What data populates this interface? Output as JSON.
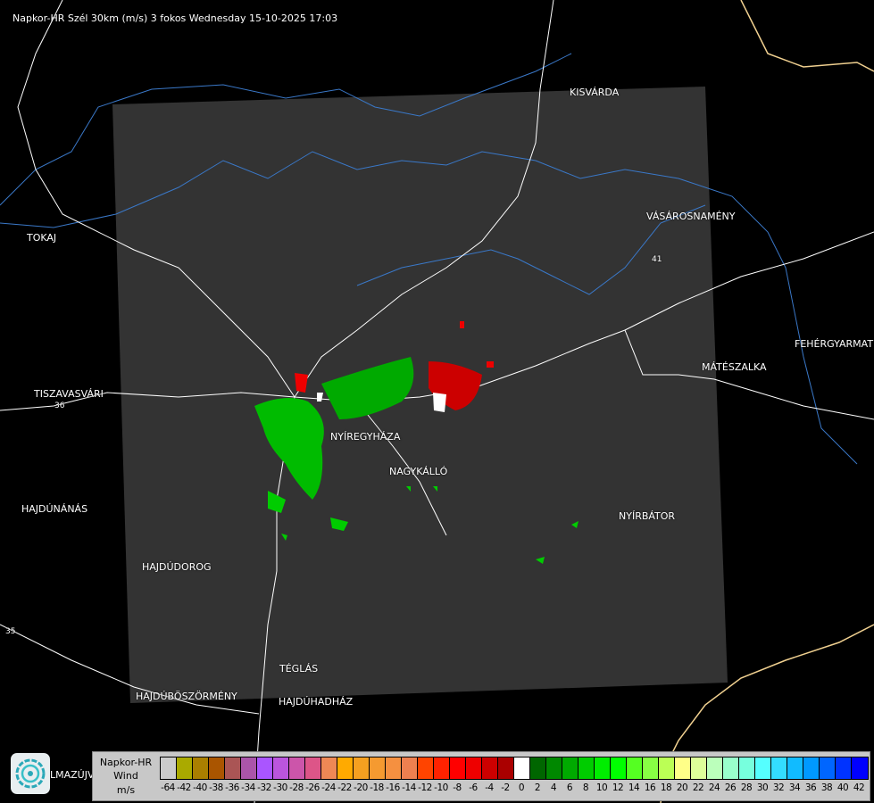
{
  "title": "Napkor-HR Szél 30km (m/s) 3 fokos Wednesday 15-10-2025 17:03",
  "towns": [
    "KISVÁRDA",
    "VÁSÁROSNAMÉNY",
    "TOKAJ",
    "FEHÉRGYARMAT",
    "MÁTÉSZALKA",
    "TISZAVASVÁRI",
    "NYÍREGYHÁZA",
    "NAGYKÁLLÓ",
    "HAJDÚNÁNÁS",
    "NYÍRBÁTOR",
    "HAJDÚDOROG",
    "TÉGLÁS",
    "HAJDÚBÖSZÖRMÉNY",
    "HAJDÚHADHÁZ",
    "LMAZÚJVÁR"
  ],
  "road_numbers": [
    "36",
    "41",
    "35"
  ],
  "legend": {
    "product": "Napkor-HR",
    "quantity": "Wind",
    "unit": "m/s",
    "labels": [
      "-64",
      "-42",
      "-40",
      "-38",
      "-36",
      "-34",
      "-32",
      "-30",
      "-28",
      "-26",
      "-24",
      "-22",
      "-20",
      "-18",
      "-16",
      "-14",
      "-12",
      "-10",
      "-8",
      "-6",
      "-4",
      "-2",
      "0",
      "2",
      "4",
      "6",
      "8",
      "10",
      "12",
      "14",
      "16",
      "18",
      "20",
      "22",
      "24",
      "26",
      "28",
      "30",
      "32",
      "34",
      "36",
      "38",
      "40",
      "42"
    ],
    "colors": [
      "#cccccc",
      "#aaaa00",
      "#aa7f00",
      "#aa5500",
      "#aa5555",
      "#aa55aa",
      "#aa55ff",
      "#bb55dd",
      "#cc55aa",
      "#dd5588",
      "#ee8855",
      "#ffaa00",
      "#f5a020",
      "#f59a30",
      "#f59040",
      "#ee8050",
      "#ff4400",
      "#ff2200",
      "#ff0000",
      "#ee0000",
      "#cc0000",
      "#aa0000",
      "#ffffff",
      "#006600",
      "#008800",
      "#00aa00",
      "#00cc00",
      "#00ee00",
      "#00ff00",
      "#55ff22",
      "#88ff44",
      "#bbff55",
      "#ffff88",
      "#ddff99",
      "#bbffbb",
      "#99ffcc",
      "#77ffdd",
      "#55ffff",
      "#33ddff",
      "#11bbff",
      "#0099ff",
      "#0066ff",
      "#0033ff",
      "#0000ff"
    ]
  },
  "colors": {
    "coverage": "#333333",
    "road": "#ffffff",
    "river": "#3a78c8",
    "border": "#f0d090",
    "approaching": "#cc0000",
    "receding": "#00bb00"
  },
  "logo": "app-logo-icon"
}
